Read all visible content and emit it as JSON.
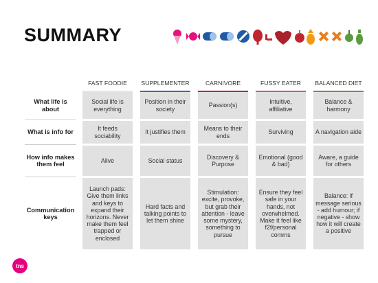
{
  "title": "SUMMARY",
  "logo_text": "tns",
  "columns": [
    {
      "label": "FAST FOODIE",
      "color": "#e5e5e5"
    },
    {
      "label": "SUPPLEMENTER",
      "color": "#2d6fb5"
    },
    {
      "label": "CARNIVORE",
      "color": "#c0262f"
    },
    {
      "label": "FUSSY EATER",
      "color": "#d94c8a"
    },
    {
      "label": "BALANCED DIET",
      "color": "#5a9b3e"
    }
  ],
  "rows": [
    {
      "label": "What life is about",
      "cells": [
        "Social life is everything",
        "Position in their society",
        "Passion(s)",
        "Intuitive, affiliative",
        "Balance & harmony"
      ]
    },
    {
      "label": "What is info for",
      "cells": [
        "It feeds sociability",
        "It justifies them",
        "Means to their ends",
        "Surviving",
        "A navigation aide"
      ]
    },
    {
      "label": "How info makes them feel",
      "cells": [
        "Alive",
        "Social status",
        "Discovery & Purpose",
        "Emotional (good & bad)",
        "Aware, a guide for others"
      ]
    },
    {
      "label": "Communication keys",
      "cells": [
        "Launch pads: Give them links and keys to expand their horizons. Never make them feel trapped or enclosed",
        "Hard facts and talking points to let them shine",
        "Stimulation: excite, provoke, but grab their attention - leave some mystery, something to pursue",
        "Ensure they feel safe in your hands, not overwhelmed. Make it feel like f2f/personal comms",
        "Balance: if message serious - add humour; if negative - show how it will create a positive"
      ]
    }
  ],
  "icons": [
    "ice-cream",
    "candy",
    "pill",
    "pill",
    "no-sign",
    "meat",
    "meat",
    "heart",
    "apple",
    "pineapple",
    "pineapple",
    "fish",
    "fruit",
    "bottle"
  ]
}
